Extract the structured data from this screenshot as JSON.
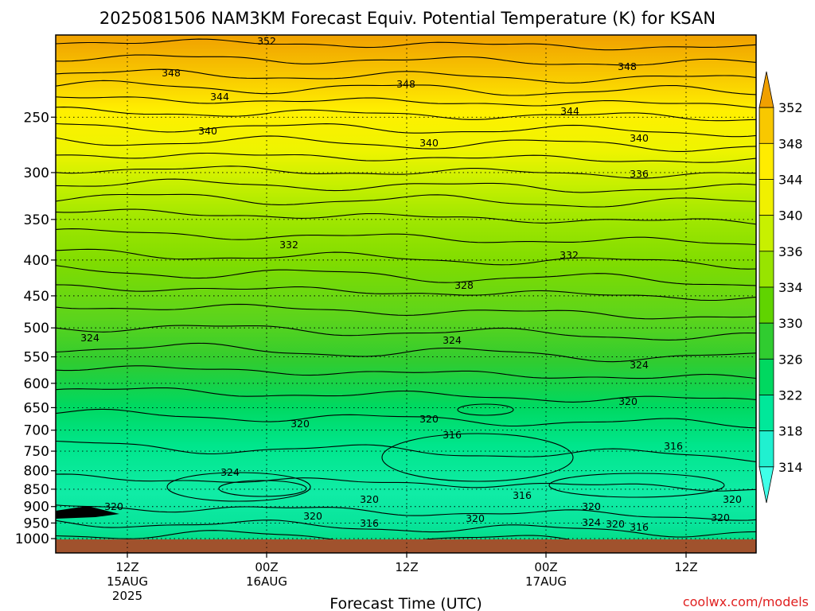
{
  "chart_data": {
    "type": "heatmap",
    "title": "2025081506 NAM3KM Forecast Equiv. Potential Temperature (K) for KSAN",
    "xlabel": "Forecast Time (UTC)",
    "ylabel": "",
    "y_scale": "log",
    "y_reversed": true,
    "ylim": [
      1000,
      200
    ],
    "y_ticks": [
      250,
      300,
      350,
      400,
      450,
      500,
      550,
      600,
      650,
      700,
      750,
      800,
      850,
      900,
      950,
      1000
    ],
    "x_ticks": [
      {
        "line1": "12Z",
        "line2": "15AUG",
        "line3": "2025"
      },
      {
        "line1": "00Z",
        "line2": "16AUG",
        "line3": ""
      },
      {
        "line1": "12Z",
        "line2": "",
        "line3": ""
      },
      {
        "line1": "00Z",
        "line2": "17AUG",
        "line3": ""
      },
      {
        "line1": "12Z",
        "line2": "",
        "line3": ""
      }
    ],
    "colorbar_levels": [
      352,
      348,
      344,
      340,
      336,
      334,
      330,
      326,
      322,
      318,
      314
    ],
    "colorbar_colors": [
      "#f0a000",
      "#f8c800",
      "#ffec00",
      "#f0f000",
      "#c8f000",
      "#98e400",
      "#60d400",
      "#30cc30",
      "#00d860",
      "#00e89a",
      "#20f0d0",
      "#40ffe8"
    ],
    "contour_labels": [
      "352",
      "348",
      "348",
      "348",
      "344",
      "344",
      "340",
      "340",
      "340",
      "336",
      "332",
      "332",
      "328",
      "324",
      "324",
      "324",
      "320",
      "320",
      "320",
      "320",
      "320",
      "320",
      "320",
      "320",
      "320",
      "320",
      "316",
      "316",
      "316",
      "316",
      "316",
      "324",
      "324",
      "320"
    ],
    "grid": true,
    "colorbar_position": "right"
  },
  "footer": {
    "credit": "coolwx.com/models"
  }
}
